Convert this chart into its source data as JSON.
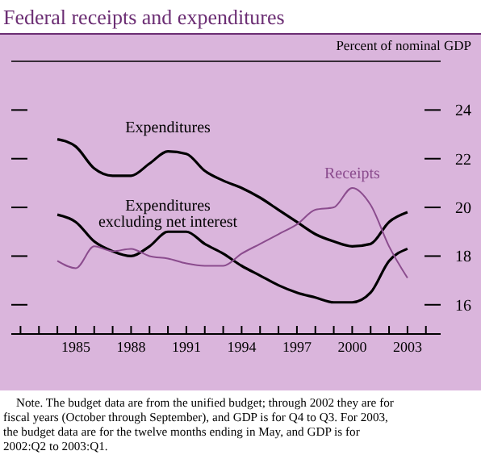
{
  "chart_data": {
    "type": "line",
    "title": "Federal receipts and expenditures",
    "ylabel": "Percent of nominal GDP",
    "x": [
      1984,
      1985,
      1986,
      1987,
      1988,
      1989,
      1990,
      1991,
      1992,
      1993,
      1994,
      1995,
      1996,
      1997,
      1998,
      1999,
      2000,
      2001,
      2002,
      2003
    ],
    "series": [
      {
        "name": "Expenditures",
        "color": "#000000",
        "values": [
          22.8,
          22.5,
          21.6,
          21.3,
          21.3,
          21.8,
          22.3,
          22.2,
          21.5,
          21.1,
          20.8,
          20.4,
          19.9,
          19.4,
          18.9,
          18.6,
          18.4,
          18.5,
          19.4,
          19.8
        ]
      },
      {
        "name": "Expenditures excluding net interest",
        "color": "#000000",
        "values": [
          19.7,
          19.4,
          18.6,
          18.2,
          18.0,
          18.4,
          19.0,
          19.0,
          18.5,
          18.1,
          17.6,
          17.2,
          16.8,
          16.5,
          16.3,
          16.1,
          16.1,
          16.5,
          17.8,
          18.3
        ]
      },
      {
        "name": "Receipts",
        "color": "#8b4c8e",
        "values": [
          17.8,
          17.5,
          18.4,
          18.2,
          18.3,
          18.0,
          17.9,
          17.7,
          17.6,
          17.6,
          18.1,
          18.5,
          18.9,
          19.3,
          19.9,
          20.0,
          20.8,
          20.1,
          18.4,
          17.1
        ]
      }
    ],
    "xlim": [
      1981.5,
      2004.8
    ],
    "xticks": [
      {
        "value": 1982,
        "label": null
      },
      {
        "value": 1983,
        "label": null
      },
      {
        "value": 1984,
        "label": null
      },
      1985,
      {
        "value": 1986,
        "label": null
      },
      {
        "value": 1987,
        "label": null
      },
      1988,
      {
        "value": 1989,
        "label": null
      },
      {
        "value": 1990,
        "label": null
      },
      1991,
      {
        "value": 1992,
        "label": null
      },
      {
        "value": 1993,
        "label": null
      },
      1994,
      {
        "value": 1995,
        "label": null
      },
      {
        "value": 1996,
        "label": null
      },
      1997,
      {
        "value": 1998,
        "label": null
      },
      {
        "value": 1999,
        "label": null
      },
      2000,
      {
        "value": 2001,
        "label": null
      },
      {
        "value": 2002,
        "label": null
      },
      2003,
      {
        "value": 2004,
        "label": null
      }
    ],
    "ylim": [
      14.8,
      26
    ],
    "yticks": [
      16,
      18,
      20,
      22,
      24
    ],
    "grid": false,
    "marker": "none",
    "line_style": "solid",
    "annotations": [
      "Note. The budget data are from the unified budget; through 2002 they are for fiscal years (October through September), and GDP is for Q4 to Q3. For 2003, the budget data are for the twelve months ending in May, and GDP is for 2002:Q2 to 2003:Q1."
    ]
  }
}
